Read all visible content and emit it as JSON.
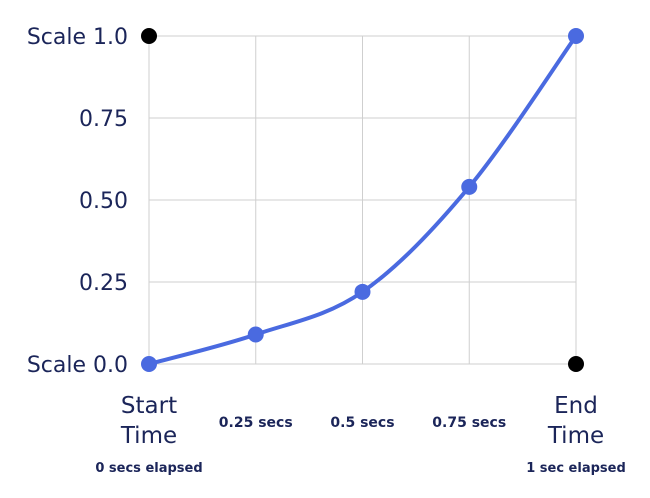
{
  "chart_data": {
    "type": "line",
    "x": [
      0,
      0.25,
      0.5,
      0.75,
      1.0
    ],
    "values": [
      0.0,
      0.09,
      0.22,
      0.54,
      1.0
    ],
    "xlim": [
      0,
      1
    ],
    "ylim": [
      0,
      1
    ],
    "grid": true,
    "line_color": "#4a6ae0",
    "grid_color": "#cfcfcf",
    "corner_dot_color": "#000000",
    "y_ticks": [
      {
        "value": 1.0,
        "label": "Scale 1.0"
      },
      {
        "value": 0.75,
        "label": "0.75"
      },
      {
        "value": 0.5,
        "label": "0.50"
      },
      {
        "value": 0.25,
        "label": "0.25"
      },
      {
        "value": 0.0,
        "label": "Scale 0.0"
      }
    ],
    "x_ticks": [
      {
        "value": 0.0,
        "line1": "Start",
        "line2": "Time",
        "note": "0 secs elapsed"
      },
      {
        "value": 0.25,
        "line1": "0.25 secs"
      },
      {
        "value": 0.5,
        "line1": "0.5 secs"
      },
      {
        "value": 0.75,
        "line1": "0.75 secs"
      },
      {
        "value": 1.0,
        "line1": "End",
        "line2": "Time",
        "note": "1 sec elapsed"
      }
    ],
    "corner_dots": [
      {
        "x": 0.0,
        "y": 1.0
      },
      {
        "x": 1.0,
        "y": 0.0
      }
    ]
  }
}
